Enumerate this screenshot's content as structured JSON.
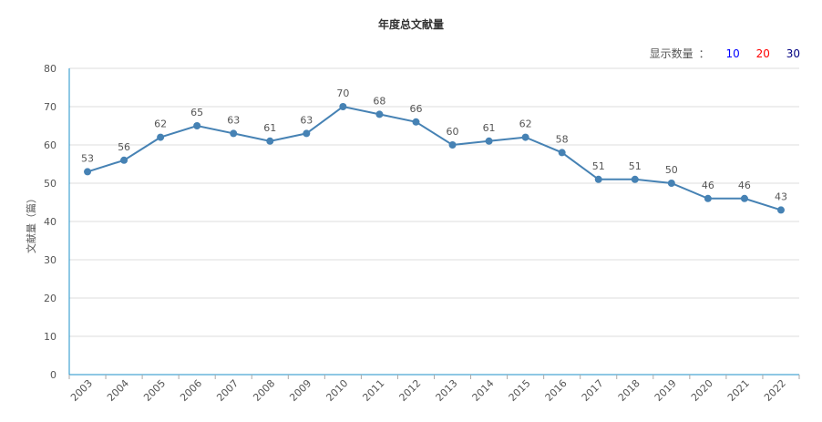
{
  "page": {
    "count_selector": {
      "label": "显示数量",
      "separator": "：",
      "options": [
        {
          "label": "10",
          "color": "#0000ff"
        },
        {
          "label": "20",
          "color": "#ff0000"
        },
        {
          "label": "30",
          "color": "#000080"
        }
      ]
    }
  },
  "chart_data": {
    "type": "line",
    "title": "年度总文献量",
    "xlabel": "",
    "ylabel": "文献量（篇）",
    "ylim": [
      0,
      80
    ],
    "yticks": [
      0,
      10,
      20,
      30,
      40,
      50,
      60,
      70,
      80
    ],
    "grid": true,
    "line_color": "#4682b4",
    "axis_color": "#1e90c8",
    "categories": [
      "2003",
      "2004",
      "2005",
      "2006",
      "2007",
      "2008",
      "2009",
      "2010",
      "2011",
      "2012",
      "2013",
      "2014",
      "2015",
      "2016",
      "2017",
      "2018",
      "2019",
      "2020",
      "2021",
      "2022"
    ],
    "series": [
      {
        "values": [
          53,
          56,
          62,
          65,
          63,
          61,
          63,
          70,
          68,
          66,
          60,
          61,
          62,
          58,
          51,
          51,
          50,
          46,
          46,
          43
        ]
      }
    ]
  }
}
